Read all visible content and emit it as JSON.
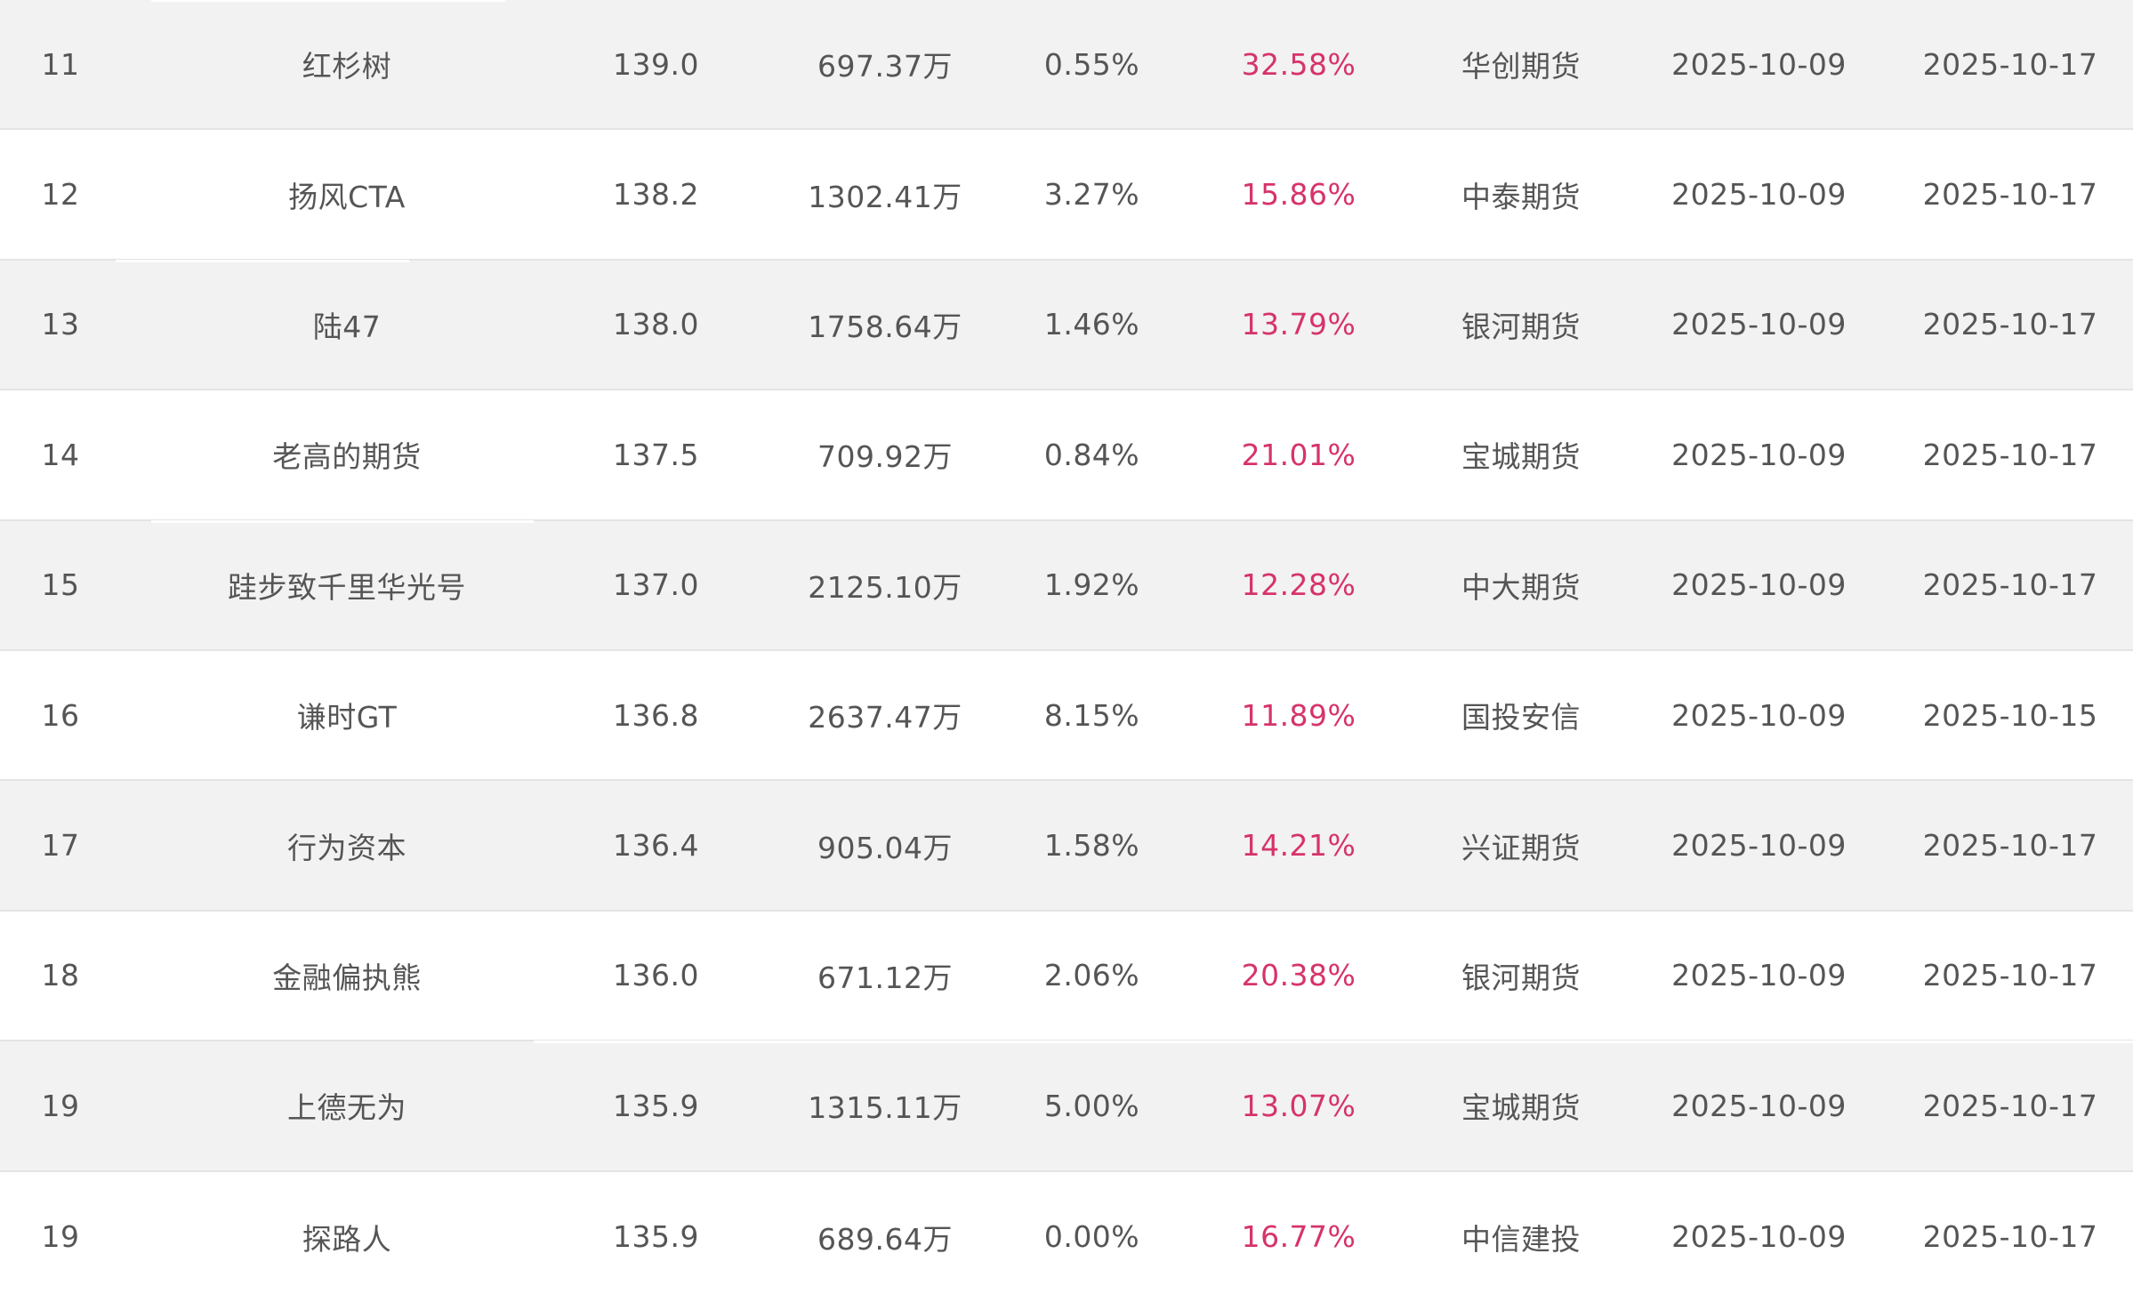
{
  "ranking_table": {
    "accent_color": "#d6336c",
    "rows": [
      {
        "rank": "11",
        "name": "红杉树",
        "score": "139.0",
        "amount": "697.37万",
        "pct": "0.55%",
        "return": "32.58%",
        "broker": "华创期货",
        "start": "2025-10-09",
        "end": "2025-10-17"
      },
      {
        "rank": "12",
        "name": "扬风CTA",
        "score": "138.2",
        "amount": "1302.41万",
        "pct": "3.27%",
        "return": "15.86%",
        "broker": "中泰期货",
        "start": "2025-10-09",
        "end": "2025-10-17"
      },
      {
        "rank": "13",
        "name": "陆47",
        "score": "138.0",
        "amount": "1758.64万",
        "pct": "1.46%",
        "return": "13.79%",
        "broker": "银河期货",
        "start": "2025-10-09",
        "end": "2025-10-17"
      },
      {
        "rank": "14",
        "name": "老高的期货",
        "score": "137.5",
        "amount": "709.92万",
        "pct": "0.84%",
        "return": "21.01%",
        "broker": "宝城期货",
        "start": "2025-10-09",
        "end": "2025-10-17"
      },
      {
        "rank": "15",
        "name": "跬步致千里华光号",
        "score": "137.0",
        "amount": "2125.10万",
        "pct": "1.92%",
        "return": "12.28%",
        "broker": "中大期货",
        "start": "2025-10-09",
        "end": "2025-10-17"
      },
      {
        "rank": "16",
        "name": "谦时GT",
        "score": "136.8",
        "amount": "2637.47万",
        "pct": "8.15%",
        "return": "11.89%",
        "broker": "国投安信",
        "start": "2025-10-09",
        "end": "2025-10-15"
      },
      {
        "rank": "17",
        "name": "行为资本",
        "score": "136.4",
        "amount": "905.04万",
        "pct": "1.58%",
        "return": "14.21%",
        "broker": "兴证期货",
        "start": "2025-10-09",
        "end": "2025-10-17"
      },
      {
        "rank": "18",
        "name": "金融偏执熊",
        "score": "136.0",
        "amount": "671.12万",
        "pct": "2.06%",
        "return": "20.38%",
        "broker": "银河期货",
        "start": "2025-10-09",
        "end": "2025-10-17"
      },
      {
        "rank": "19",
        "name": "上德无为",
        "score": "135.9",
        "amount": "1315.11万",
        "pct": "5.00%",
        "return": "13.07%",
        "broker": "宝城期货",
        "start": "2025-10-09",
        "end": "2025-10-17"
      },
      {
        "rank": "19",
        "name": "探路人",
        "score": "135.9",
        "amount": "689.64万",
        "pct": "0.00%",
        "return": "16.77%",
        "broker": "中信建投",
        "start": "2025-10-09",
        "end": "2025-10-17"
      }
    ]
  }
}
